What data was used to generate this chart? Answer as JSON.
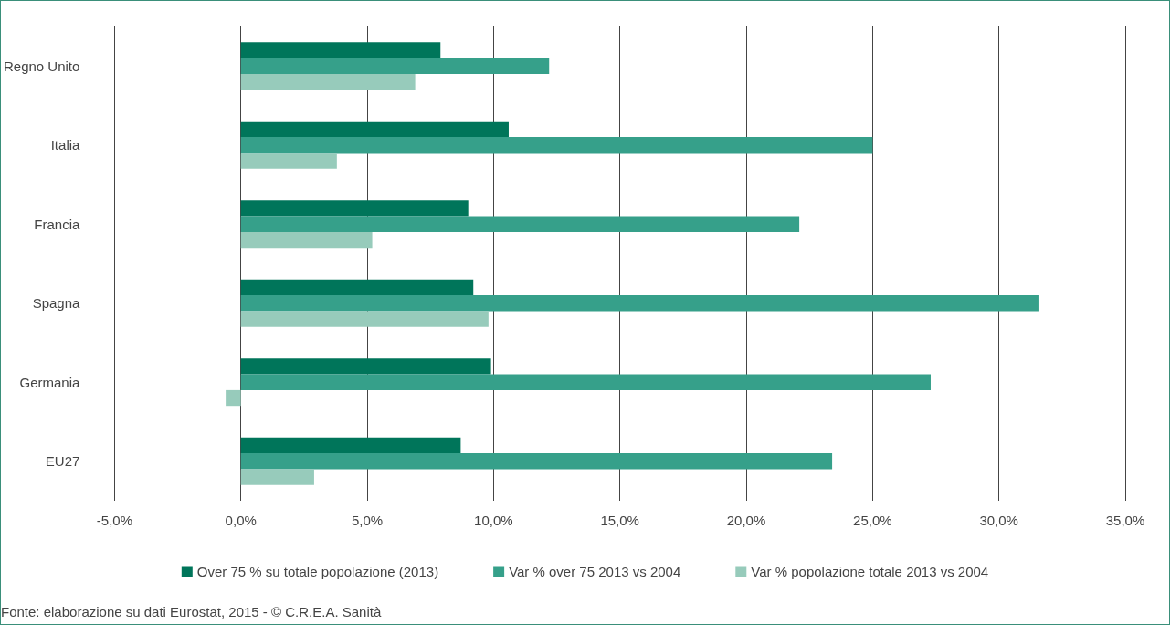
{
  "chart_data": {
    "type": "bar",
    "orientation": "horizontal",
    "categories": [
      "Regno Unito",
      "Italia",
      "Francia",
      "Spagna",
      "Germania",
      "EU27"
    ],
    "series": [
      {
        "name": "Over 75 % su totale popolazione (2013)",
        "color": "#00755a",
        "values": [
          7.9,
          10.6,
          9.0,
          9.2,
          9.9,
          8.7
        ]
      },
      {
        "name": "Var % over 75 2013 vs 2004",
        "color": "#36a08a",
        "values": [
          12.2,
          25.0,
          22.1,
          31.6,
          27.3,
          23.4
        ]
      },
      {
        "name": "Var % popolazione totale 2013 vs 2004",
        "color": "#97cbbb",
        "values": [
          6.9,
          3.8,
          5.2,
          9.8,
          -0.6,
          2.9
        ]
      }
    ],
    "xlim": [
      -5,
      35
    ],
    "xticks": [
      {
        "value": -5,
        "label": "-5,0%"
      },
      {
        "value": 0,
        "label": "0,0%"
      },
      {
        "value": 5,
        "label": "5,0%"
      },
      {
        "value": 10,
        "label": "10,0%"
      },
      {
        "value": 15,
        "label": "15,0%"
      },
      {
        "value": 20,
        "label": "20,0%"
      },
      {
        "value": 25,
        "label": "25,0%"
      },
      {
        "value": 30,
        "label": "30,0%"
      },
      {
        "value": 35,
        "label": "35,0%"
      }
    ],
    "grid": "x",
    "legend": "bottom",
    "annotations": [
      "Fonte: elaborazione su dati Eurostat, 2015 - © C.R.E.A. Sanità"
    ]
  }
}
